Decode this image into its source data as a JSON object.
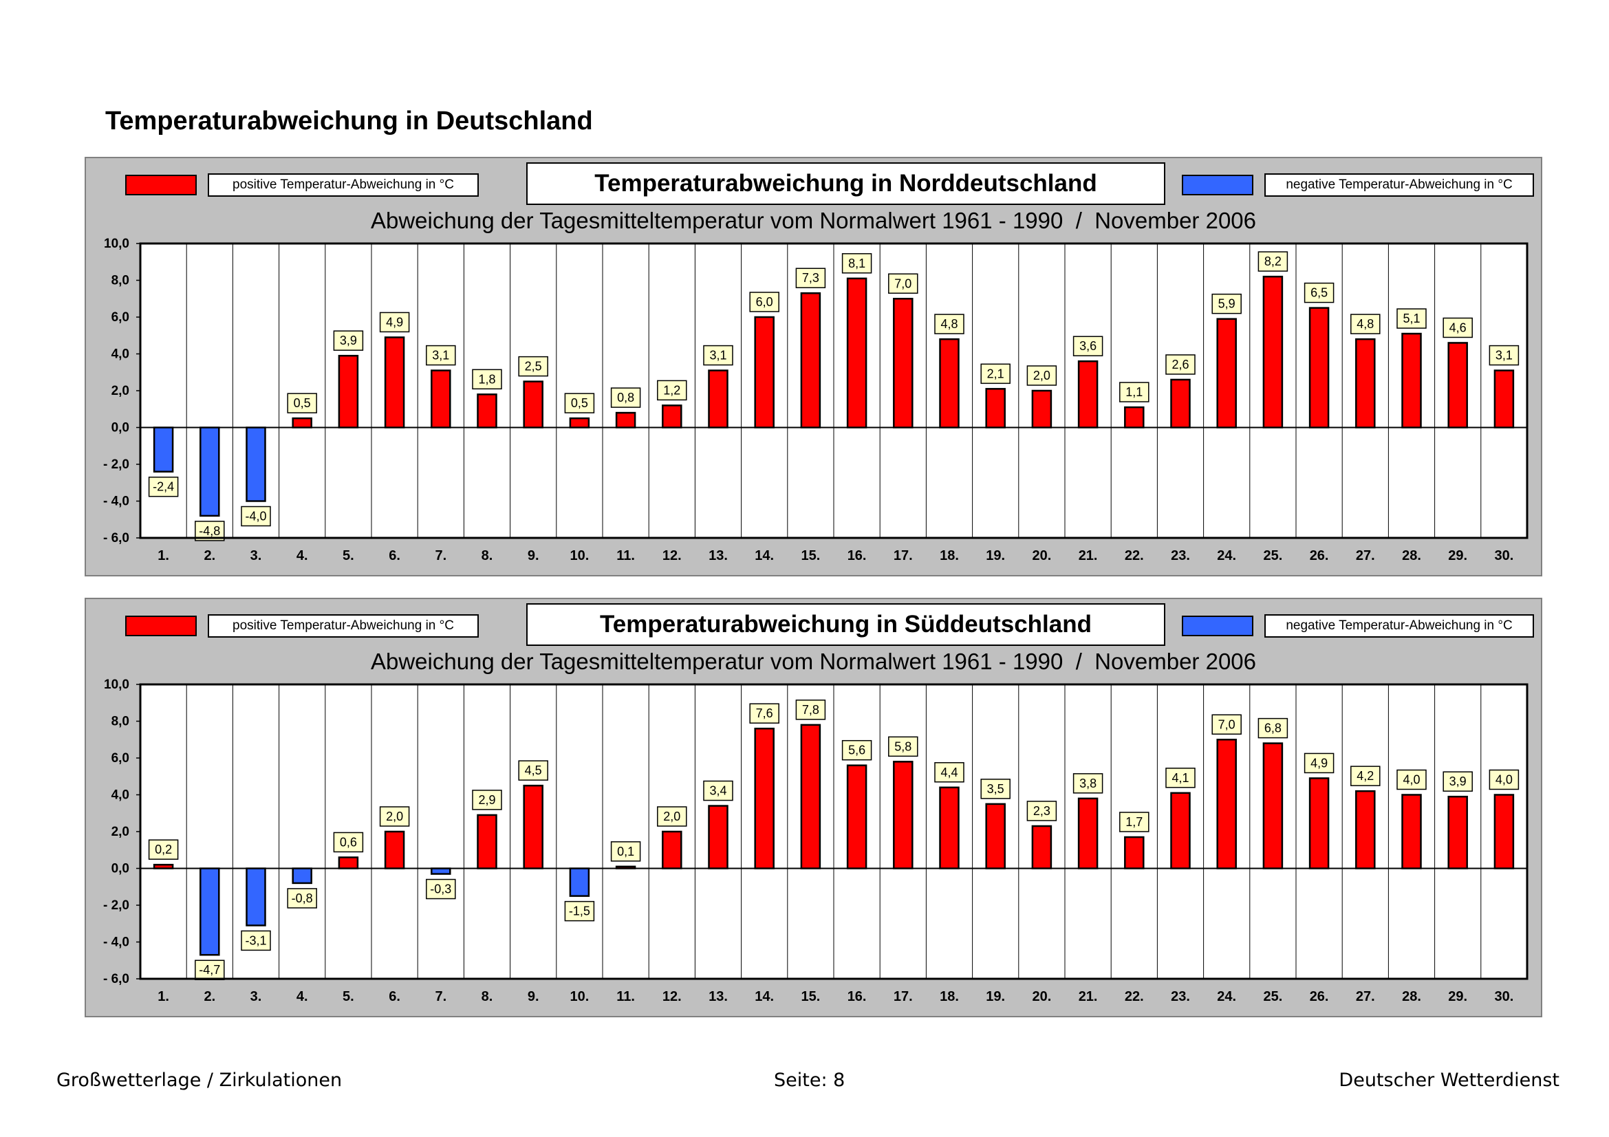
{
  "page": {
    "title": "Temperaturabweichung in Deutschland",
    "footer_left": "Großwetterlage / Zirkulationen",
    "footer_center": "Seite: 8",
    "footer_right": "Deutscher Wetterdienst"
  },
  "colors": {
    "positive": "#ff0000",
    "negative": "#3366ff",
    "panel_bg": "#c0c0c0",
    "plot_bg": "#ffffff",
    "label_bg": "#ffffcc"
  },
  "chart_data": [
    {
      "type": "bar",
      "title": "Temperaturabweichung in Norddeutschland",
      "subtitle": "Abweichung der Tagesmitteltemperatur vom Normalwert 1961 - 1990  /  November 2006",
      "legend_positive": "positive Temperatur-Abweichung in °C",
      "legend_negative": "negative Temperatur-Abweichung in °C",
      "categories": [
        "1.",
        "2.",
        "3.",
        "4.",
        "5.",
        "6.",
        "7.",
        "8.",
        "9.",
        "10.",
        "11.",
        "12.",
        "13.",
        "14.",
        "15.",
        "16.",
        "17.",
        "18.",
        "19.",
        "20.",
        "21.",
        "22.",
        "23.",
        "24.",
        "25.",
        "26.",
        "27.",
        "28.",
        "29.",
        "30."
      ],
      "values": [
        -2.4,
        -4.8,
        -4.0,
        0.5,
        3.9,
        4.9,
        3.1,
        1.8,
        2.5,
        0.5,
        0.8,
        1.2,
        3.1,
        6.0,
        7.3,
        8.1,
        7.0,
        4.8,
        2.1,
        2.0,
        3.6,
        1.1,
        2.6,
        5.9,
        8.2,
        6.5,
        4.8,
        5.1,
        4.6,
        3.1
      ],
      "value_labels": [
        "-2,4",
        "-4,8",
        "-4,0",
        "0,5",
        "3,9",
        "4,9",
        "3,1",
        "1,8",
        "2,5",
        "0,5",
        "0,8",
        "1,2",
        "3,1",
        "6,0",
        "7,3",
        "8,1",
        "7,0",
        "4,8",
        "2,1",
        "2,0",
        "3,6",
        "1,1",
        "2,6",
        "5,9",
        "8,2",
        "6,5",
        "4,8",
        "5,1",
        "4,6",
        "3,1"
      ],
      "ylim": [
        -6,
        10
      ],
      "yticks": [
        10,
        8,
        6,
        4,
        2,
        0,
        -2,
        -4,
        -6
      ],
      "ytick_labels": [
        "10,0",
        "8,0",
        "6,0",
        "4,0",
        "2,0",
        "0,0",
        "- 2,0",
        "- 4,0",
        "- 6,0"
      ],
      "xlabel": "",
      "ylabel": ""
    },
    {
      "type": "bar",
      "title": "Temperaturabweichung in Süddeutschland",
      "subtitle": "Abweichung der Tagesmitteltemperatur vom Normalwert 1961 - 1990  /  November 2006",
      "legend_positive": "positive Temperatur-Abweichung in °C",
      "legend_negative": "negative Temperatur-Abweichung in °C",
      "categories": [
        "1.",
        "2.",
        "3.",
        "4.",
        "5.",
        "6.",
        "7.",
        "8.",
        "9.",
        "10.",
        "11.",
        "12.",
        "13.",
        "14.",
        "15.",
        "16.",
        "17.",
        "18.",
        "19.",
        "20.",
        "21.",
        "22.",
        "23.",
        "24.",
        "25.",
        "26.",
        "27.",
        "28.",
        "29.",
        "30."
      ],
      "values": [
        0.2,
        -4.7,
        -3.1,
        -0.8,
        0.6,
        2.0,
        -0.3,
        2.9,
        4.5,
        -1.5,
        0.1,
        2.0,
        3.4,
        7.6,
        7.8,
        5.6,
        5.8,
        4.4,
        3.5,
        2.3,
        3.8,
        1.7,
        4.1,
        7.0,
        6.8,
        4.9,
        4.2,
        4.0,
        3.9,
        4.0
      ],
      "value_labels": [
        "0,2",
        "-4,7",
        "-3,1",
        "-0,8",
        "0,6",
        "2,0",
        "-0,3",
        "2,9",
        "4,5",
        "-1,5",
        "0,1",
        "2,0",
        "3,4",
        "7,6",
        "7,8",
        "5,6",
        "5,8",
        "4,4",
        "3,5",
        "2,3",
        "3,8",
        "1,7",
        "4,1",
        "7,0",
        "6,8",
        "4,9",
        "4,2",
        "4,0",
        "3,9",
        "4,0"
      ],
      "ylim": [
        -6,
        10
      ],
      "yticks": [
        10,
        8,
        6,
        4,
        2,
        0,
        -2,
        -4,
        -6
      ],
      "ytick_labels": [
        "10,0",
        "8,0",
        "6,0",
        "4,0",
        "2,0",
        "0,0",
        "- 2,0",
        "- 4,0",
        "- 6,0"
      ],
      "xlabel": "",
      "ylabel": ""
    }
  ]
}
